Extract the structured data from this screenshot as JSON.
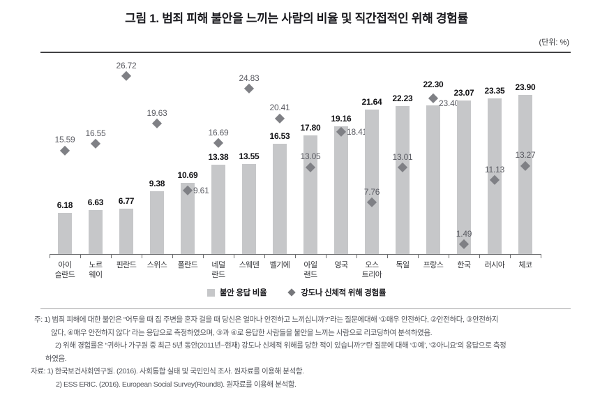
{
  "title": "그림 1. 범죄 피해 불안을 느끼는 사람의 비율 및 직간접적인 위해 경험률",
  "unit_label": "(단위: %)",
  "chart_data": {
    "type": "bar",
    "title": "그림 1. 범죄 피해 불안을 느끼는 사람의 비율 및 직간접적인 위해 경험률",
    "unit": "%",
    "categories": [
      "아이\n슬란드",
      "노르\n웨이",
      "핀란드",
      "스위스",
      "폴란드",
      "네덜\n란드",
      "스웨덴",
      "벨기에",
      "아일\n랜드",
      "영국",
      "오스\n트리아",
      "독일",
      "프랑스",
      "한국",
      "러시아",
      "체코"
    ],
    "series": [
      {
        "name": "불안 응답 비율",
        "type": "bar",
        "values": [
          6.18,
          6.63,
          6.77,
          9.38,
          10.69,
          13.38,
          13.55,
          16.53,
          17.8,
          19.16,
          21.64,
          22.23,
          22.3,
          23.07,
          23.35,
          23.9
        ]
      },
      {
        "name": "강도나 신체적 위해 경험률",
        "type": "scatter-diamond",
        "values": [
          15.59,
          16.55,
          26.72,
          19.63,
          9.61,
          16.69,
          24.83,
          20.41,
          13.05,
          18.41,
          7.76,
          13.01,
          23.4,
          1.49,
          11.13,
          13.27
        ]
      }
    ],
    "ylim": [
      0,
      29.2
    ],
    "grid": false,
    "legend_position": "bottom-center",
    "bar_color": "#c6c7c9",
    "marker_color": "#7f8085",
    "bar_label_pos": [
      "above",
      "above",
      "above",
      "above",
      "above",
      "above",
      "above",
      "above",
      "above",
      "above",
      "above",
      "above",
      "above-marker",
      "above",
      "above",
      "above"
    ],
    "marker_label_pos": [
      "above",
      "above",
      "above",
      "above",
      "right",
      "above",
      "above",
      "above",
      "above",
      "right",
      "above",
      "above",
      "right-low",
      "above",
      "above",
      "above"
    ]
  },
  "legend": {
    "items": [
      {
        "swatch": "bar-square",
        "label": "불안 응답 비율"
      },
      {
        "swatch": "diamond",
        "label": "강도나 신체적 위해 경험률"
      }
    ]
  },
  "notes": {
    "lines": [
      "주: 1) 범죄 피해에 대한 불안은 “어두울 때 집 주변을 혼자 걸을 때 당신은 얼마나 안전하고 느끼십니까?”라는 질문에대해 ‘①매우 안전하다, ②안전하다, ③안전하지",
      "않다, ④매우 안전하지 않다’ 라는 응답으로 측정하였으며, ③과 ④로 응답한 사람들을 불안을 느끼는 사람으로 리코딩하여 분석하였음.",
      "2) 위해 경험률은 “귀하나 가구원 중 최근 5년 동안(2011년~현재) 강도나 신체적 위해를 당한 적이 있습니까?”란 질문에 대해 ‘①예’, ‘②아니요’의 응답으로 측정",
      "하였음.",
      "자료: 1) 한국보건사회연구원. (2016). 사회통합 실태 및 국민인식 조사. 원자료를 이용해 분석함.",
      "2) ESS ERIC. (2016). European Social Survey(Round8). 원자료를 이용해 분석함."
    ]
  }
}
